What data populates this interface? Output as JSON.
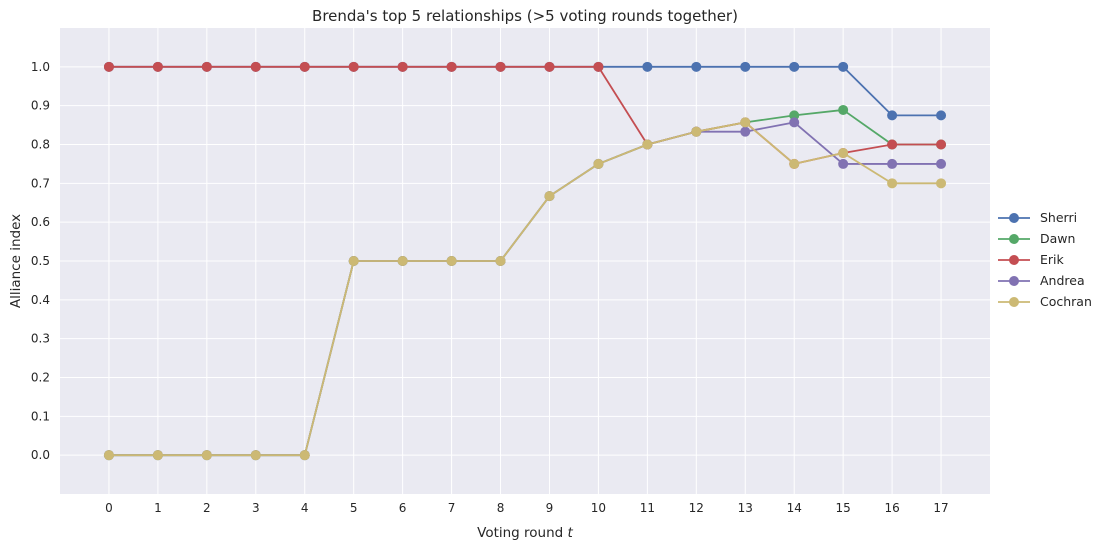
{
  "chart_data": {
    "type": "line",
    "title": "Brenda's top 5 relationships (>5 voting rounds together)",
    "xlabel": "Voting round",
    "xlabel_var": "t",
    "ylabel": "Alliance index",
    "x": [
      0,
      1,
      2,
      3,
      4,
      5,
      6,
      7,
      8,
      9,
      10,
      11,
      12,
      13,
      14,
      15,
      16,
      17
    ],
    "xlim": [
      -1,
      18
    ],
    "ylim": [
      -0.1,
      1.1
    ],
    "yticks": [
      0.0,
      0.1,
      0.2,
      0.3,
      0.4,
      0.5,
      0.6,
      0.7,
      0.8,
      0.9,
      1.0
    ],
    "grid": true,
    "legend_position": "right",
    "series": [
      {
        "name": "Sherri",
        "color": "#4c72b0",
        "values": [
          1,
          1,
          1,
          1,
          1,
          1,
          1,
          1,
          1,
          1,
          1,
          1,
          1,
          1,
          1,
          1,
          0.875,
          0.875
        ]
      },
      {
        "name": "Dawn",
        "color": "#55a868",
        "values": [
          0,
          0,
          0,
          0,
          0,
          0.5,
          0.5,
          0.5,
          0.5,
          0.667,
          0.75,
          0.8,
          0.833,
          0.857,
          0.875,
          0.889,
          0.8,
          0.8
        ]
      },
      {
        "name": "Erik",
        "color": "#c44e52",
        "values": [
          1,
          1,
          1,
          1,
          1,
          1,
          1,
          1,
          1,
          1,
          1,
          0.8,
          0.833,
          0.857,
          0.75,
          0.778,
          0.8,
          0.8
        ]
      },
      {
        "name": "Andrea",
        "color": "#8172b2",
        "values": [
          0,
          0,
          0,
          0,
          0,
          0.5,
          0.5,
          0.5,
          0.5,
          0.667,
          0.75,
          0.8,
          0.833,
          0.833,
          0.857,
          0.75,
          0.75,
          0.75
        ]
      },
      {
        "name": "Cochran",
        "color": "#ccb974",
        "values": [
          0,
          0,
          0,
          0,
          0,
          0.5,
          0.5,
          0.5,
          0.5,
          0.667,
          0.75,
          0.8,
          0.833,
          0.857,
          0.75,
          0.778,
          0.7,
          0.7
        ]
      }
    ]
  }
}
